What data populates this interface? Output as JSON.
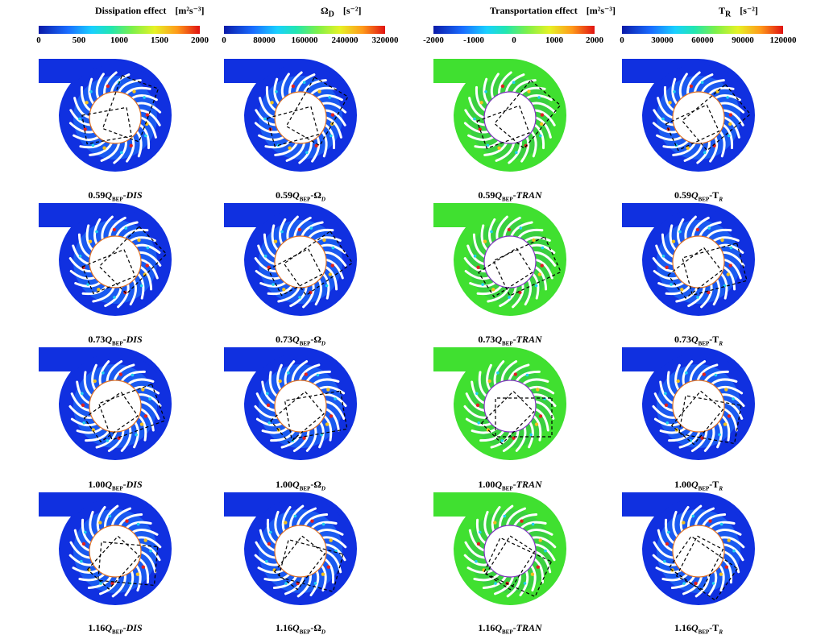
{
  "columns": [
    {
      "title": "Dissipation effect",
      "unit": "[m²s⁻³]",
      "ticks": [
        "0",
        "500",
        "1000",
        "1500",
        "2000"
      ],
      "mode": "low",
      "suffix": "DIS"
    },
    {
      "title": "Ω",
      "title_sub": "D",
      "unit": "[s⁻²]",
      "ticks": [
        "0",
        "80000",
        "160000",
        "240000",
        "320000"
      ],
      "mode": "low",
      "suffix": "Ω",
      "suffix_sub": "D"
    },
    {
      "title": "Transportation effect",
      "unit": "[m²s⁻³]",
      "ticks": [
        "-2000",
        "-1000",
        "0",
        "1000",
        "2000"
      ],
      "mode": "mid",
      "suffix": "TRAN"
    },
    {
      "title": "T",
      "title_sub": "R",
      "unit": "[s⁻²]",
      "ticks": [
        "0",
        "30000",
        "60000",
        "90000",
        "120000"
      ],
      "mode": "low",
      "suffix": "T",
      "suffix_sub": "R"
    }
  ],
  "rows": [
    {
      "flow": "0.59"
    },
    {
      "flow": "0.73"
    },
    {
      "flow": "1.00"
    },
    {
      "flow": "1.16"
    }
  ],
  "caption_q": "Q",
  "caption_sub": "BEP",
  "colors": {
    "low": "#1030e0",
    "mid": "#40e030",
    "blade": "#ffffff",
    "hot": "#e02020",
    "warm": "#f0c020",
    "cyan": "#20d0f0"
  }
}
